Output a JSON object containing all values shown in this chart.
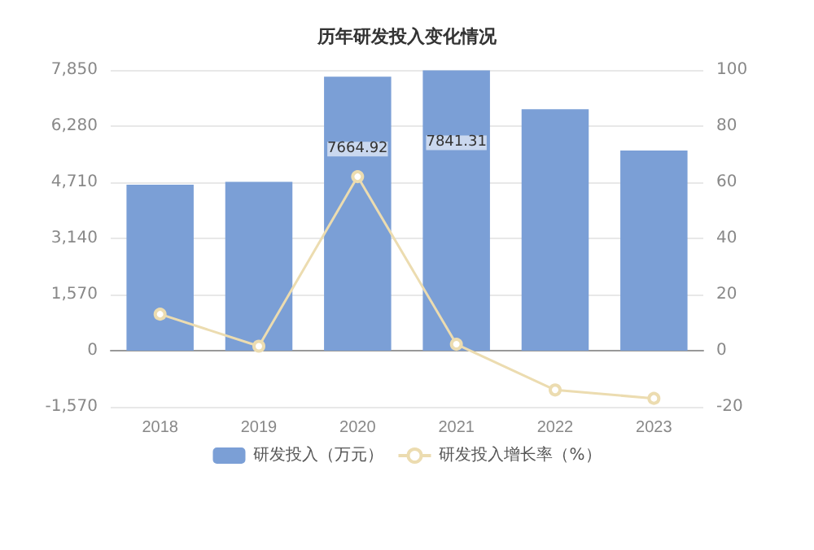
{
  "chart_data": {
    "type": "bar",
    "title": "历年研发投入变化情况",
    "categories": [
      "2018",
      "2019",
      "2020",
      "2021",
      "2022",
      "2023"
    ],
    "series": [
      {
        "name": "研发投入（万元）",
        "color": "#7b9fd6",
        "values": [
          4640,
          4720,
          7664.92,
          7841.31,
          6750,
          5600
        ],
        "value_labels": [
          null,
          null,
          "7664.92",
          "7841.31",
          null,
          null
        ]
      },
      {
        "name": "研发投入增长率（%）",
        "type": "line",
        "axis": "y2",
        "color": "#ecdcb0",
        "marker": "circle",
        "values": [
          13,
          1.6,
          62,
          2.3,
          -14,
          -17
        ]
      }
    ],
    "ylim": [
      -1570,
      7850
    ],
    "yticks": [
      {
        "value": -1570,
        "label": "-1,570"
      },
      0,
      {
        "value": 1570,
        "label": "1,570"
      },
      {
        "value": 3140,
        "label": "3,140"
      },
      {
        "value": 4710,
        "label": "4,710"
      },
      {
        "value": 6280,
        "label": "6,280"
      },
      {
        "value": 7850,
        "label": "7,850"
      }
    ],
    "y2lim": [
      -20,
      100
    ],
    "y2ticks": [
      -20,
      0,
      20,
      40,
      60,
      80,
      100
    ],
    "grid": "y",
    "legend": "bottom"
  }
}
